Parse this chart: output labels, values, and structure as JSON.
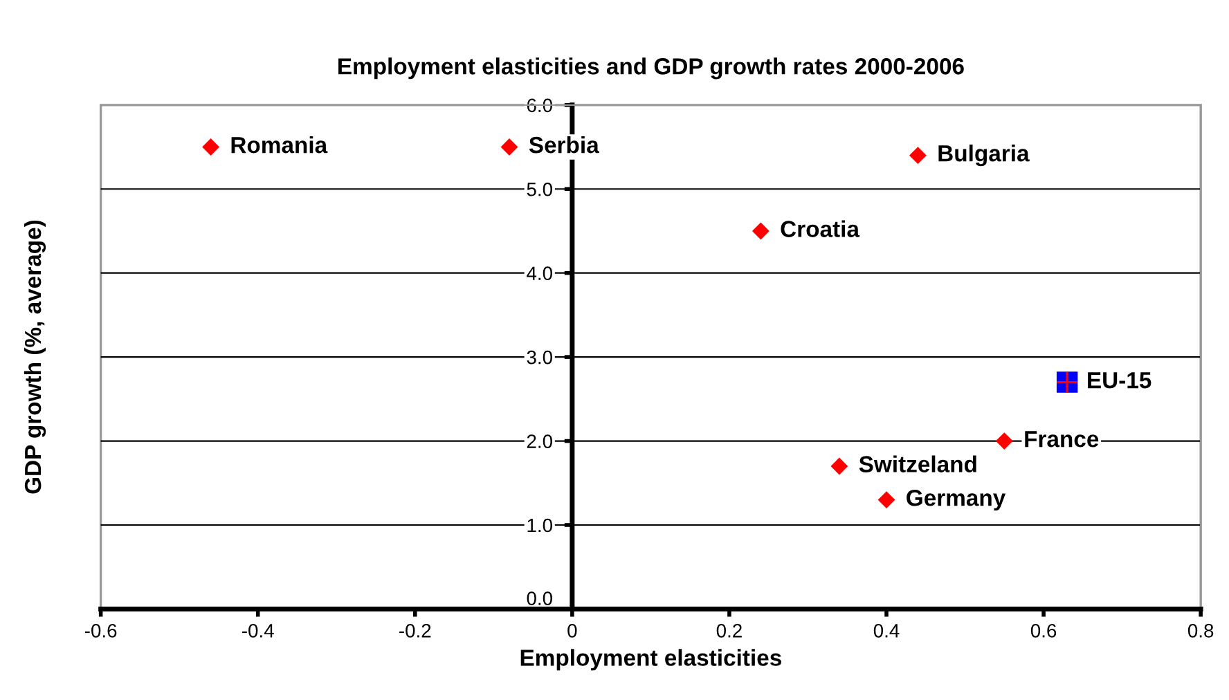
{
  "chart_data": {
    "type": "scatter",
    "title": "Employment elasticities and GDP growth rates 2000-2006",
    "xlabel": "Employment elasticities",
    "ylabel": "GDP growth (%, average)",
    "series": [
      {
        "color": "#ff0000",
        "marker": "diamond",
        "x": [
          -0.46,
          -0.08,
          0.44,
          0.24,
          0.55,
          0.34,
          0.4
        ],
        "values": [
          5.5,
          5.5,
          5.4,
          4.5,
          2.0,
          1.7,
          1.3
        ]
      },
      {
        "name": "EU-15",
        "color": "#0000ff",
        "marker": "square",
        "x": [
          0.63
        ],
        "values": [
          2.7
        ]
      }
    ],
    "annotations": [
      {
        "text": "Romania",
        "x": -0.46,
        "y": 5.5
      },
      {
        "text": "Serbia",
        "x": -0.08,
        "y": 5.5
      },
      {
        "text": "Bulgaria",
        "x": 0.44,
        "y": 5.4
      },
      {
        "text": "Croatia",
        "x": 0.24,
        "y": 4.5
      },
      {
        "text": "France",
        "x": 0.55,
        "y": 2.0
      },
      {
        "text": "Switzeland",
        "x": 0.34,
        "y": 1.7
      },
      {
        "text": "Germany",
        "x": 0.4,
        "y": 1.3
      }
    ],
    "xlim": [
      -0.6,
      0.8
    ],
    "xticks": [
      -0.6,
      -0.4,
      -0.2,
      {
        "value": 0,
        "label": "0"
      },
      0.2,
      0.4,
      0.6,
      0.8
    ],
    "ylim": [
      0,
      6
    ],
    "yticks": [
      {
        "value": 0,
        "label": "0.0"
      },
      {
        "value": 1,
        "label": "1.0"
      },
      {
        "value": 2,
        "label": "2.0"
      },
      {
        "value": 3,
        "label": "3.0"
      },
      {
        "value": 4,
        "label": "4.0"
      },
      {
        "value": 5,
        "label": "5.0"
      },
      {
        "value": 6,
        "label": "6.0"
      }
    ],
    "grid": "y"
  }
}
